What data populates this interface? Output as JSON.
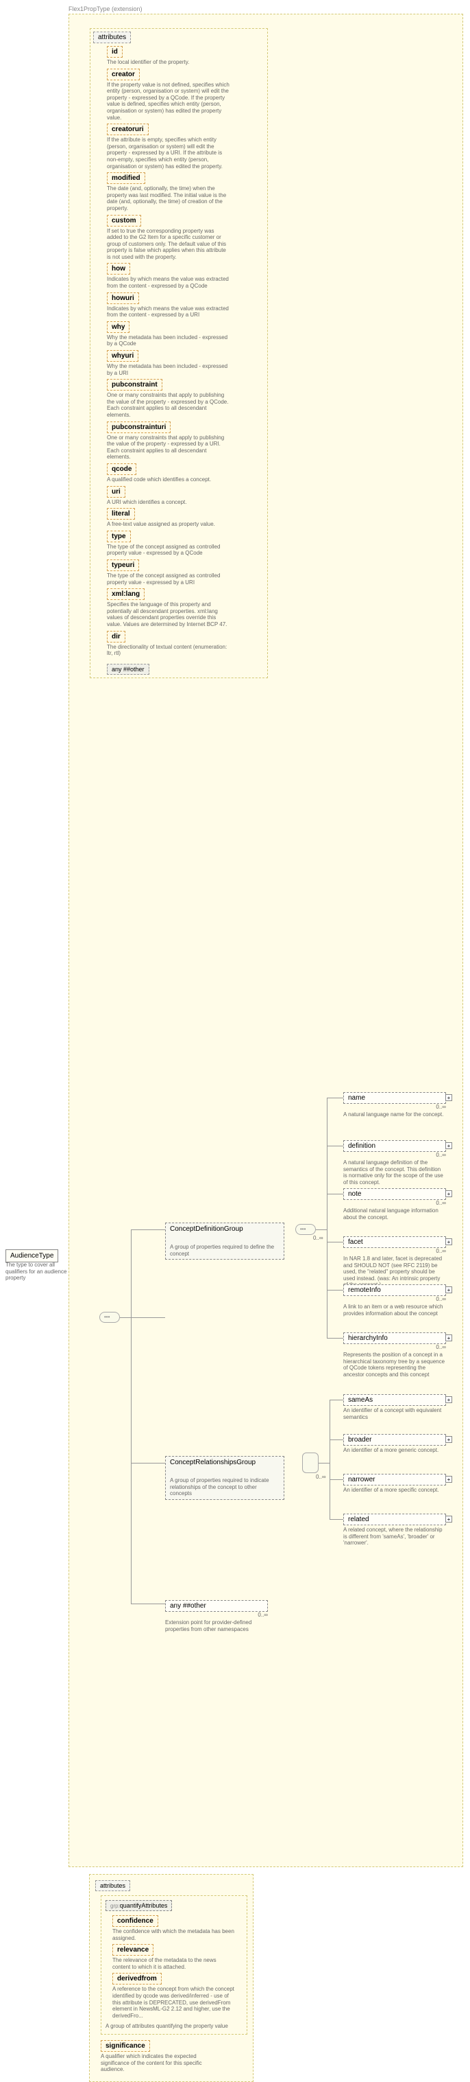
{
  "root": {
    "name": "AudienceType",
    "desc": "The type to cover all qualifiers for an audience property"
  },
  "extension_label": "Flex1PropType (extension)",
  "attributes_label": "attributes",
  "attributes": [
    {
      "name": "id",
      "desc": "The local identifier of the property."
    },
    {
      "name": "creator",
      "desc": "If the property value is not defined, specifies which entity (person, organisation or system) will edit the property - expressed by a QCode. If the property value is defined, specifies which entity (person, organisation or system) has edited the property value."
    },
    {
      "name": "creatoruri",
      "desc": "If the attribute is empty, specifies which entity (person, organisation or system) will edit the property - expressed by a URI. If the attribute is non-empty, specifies which entity (person, organisation or system) has edited the property."
    },
    {
      "name": "modified",
      "desc": "The date (and, optionally, the time) when the property was last modified. The initial value is the date (and, optionally, the time) of creation of the property."
    },
    {
      "name": "custom",
      "desc": "If set to true the corresponding property was added to the G2 Item for a specific customer or group of customers only. The default value of this property is false which applies when this attribute is not used with the property."
    },
    {
      "name": "how",
      "desc": "Indicates by which means the value was extracted from the content - expressed by a QCode"
    },
    {
      "name": "howuri",
      "desc": "Indicates by which means the value was extracted from the content - expressed by a URI"
    },
    {
      "name": "why",
      "desc": "Why the metadata has been included - expressed by a QCode"
    },
    {
      "name": "whyuri",
      "desc": "Why the metadata has been included - expressed by a URI"
    },
    {
      "name": "pubconstraint",
      "desc": "One or many constraints that apply to publishing the value of the property - expressed by a QCode. Each constraint applies to all descendant elements."
    },
    {
      "name": "pubconstrainturi",
      "desc": "One or many constraints that apply to publishing the value of the property - expressed by a URI. Each constraint applies to all descendant elements."
    },
    {
      "name": "qcode",
      "desc": "A qualified code which identifies a concept."
    },
    {
      "name": "uri",
      "desc": "A URI which identifies a concept."
    },
    {
      "name": "literal",
      "desc": "A free-text value assigned as property value."
    },
    {
      "name": "type",
      "desc": "The type of the concept assigned as controlled property value - expressed by a QCode"
    },
    {
      "name": "typeuri",
      "desc": "The type of the concept assigned as controlled property value - expressed by a URI"
    },
    {
      "name": "xml:lang",
      "desc": "Specifies the language of this property and potentially all descendant properties. xml:lang values of descendant properties override this value. Values are determined by Internet BCP 47."
    },
    {
      "name": "dir",
      "desc": "The directionality of textual content (enumeration: ltr, rtl)"
    }
  ],
  "any_other": "any ##other",
  "cdg": {
    "name": "ConceptDefinitionGroup",
    "desc": "A group of properties required to define the concept",
    "children": [
      {
        "name": "name",
        "desc": "A natural language name for the concept."
      },
      {
        "name": "definition",
        "desc": "A natural language definition of the semantics of the concept. This definition is normative only for the scope of the use of this concept."
      },
      {
        "name": "note",
        "desc": "Additional natural language information about the concept."
      },
      {
        "name": "facet",
        "desc": "In NAR 1.8 and later, facet is deprecated and SHOULD NOT (see RFC 2119) be used, the \"related\" property should be used instead. (was: An intrinsic property of the concept.)"
      },
      {
        "name": "remoteInfo",
        "desc": "A link to an item or a web resource which provides information about the concept"
      },
      {
        "name": "hierarchyInfo",
        "desc": "Represents the position of a concept in a hierarchical taxonomy tree by a sequence of QCode tokens representing the ancestor concepts and this concept"
      }
    ]
  },
  "crg": {
    "name": "ConceptRelationshipsGroup",
    "desc": "A group of properties required to indicate relationships of the concept to other concepts",
    "children": [
      {
        "name": "sameAs",
        "desc": "An identifier of a concept with equivalent semantics"
      },
      {
        "name": "broader",
        "desc": "An identifier of a more generic concept."
      },
      {
        "name": "narrower",
        "desc": "An identifier of a more specific concept."
      },
      {
        "name": "related",
        "desc": "A related concept, where the relationship is different from 'sameAs', 'broader' or 'narrower'."
      }
    ]
  },
  "ext_point": {
    "label": "any ##other",
    "desc": "Extension point for provider-defined properties from other namespaces"
  },
  "quant": {
    "header": "attributes",
    "group_label": "quantifyAttributes",
    "items": [
      {
        "name": "confidence",
        "desc": "The confidence with which the metadata has been assigned."
      },
      {
        "name": "relevance",
        "desc": "The relevance of the metadata to the news content to which it is attached."
      },
      {
        "name": "derivedfrom",
        "desc": "A reference to the concept from which the concept identified by qcode was derived/inferred - use of this attribute is DEPRECATED, use derivedFrom element in NewsML-G2 2.12 and higher, use the derivedFro..."
      }
    ],
    "group_desc": "A group of attributes quantifying the property value",
    "sig": {
      "name": "significance",
      "desc": "A qualifier which indicates the expected significance of the content for this specific audience."
    }
  },
  "zero_inf": "0..∞",
  "grp_prefix": "grp:"
}
